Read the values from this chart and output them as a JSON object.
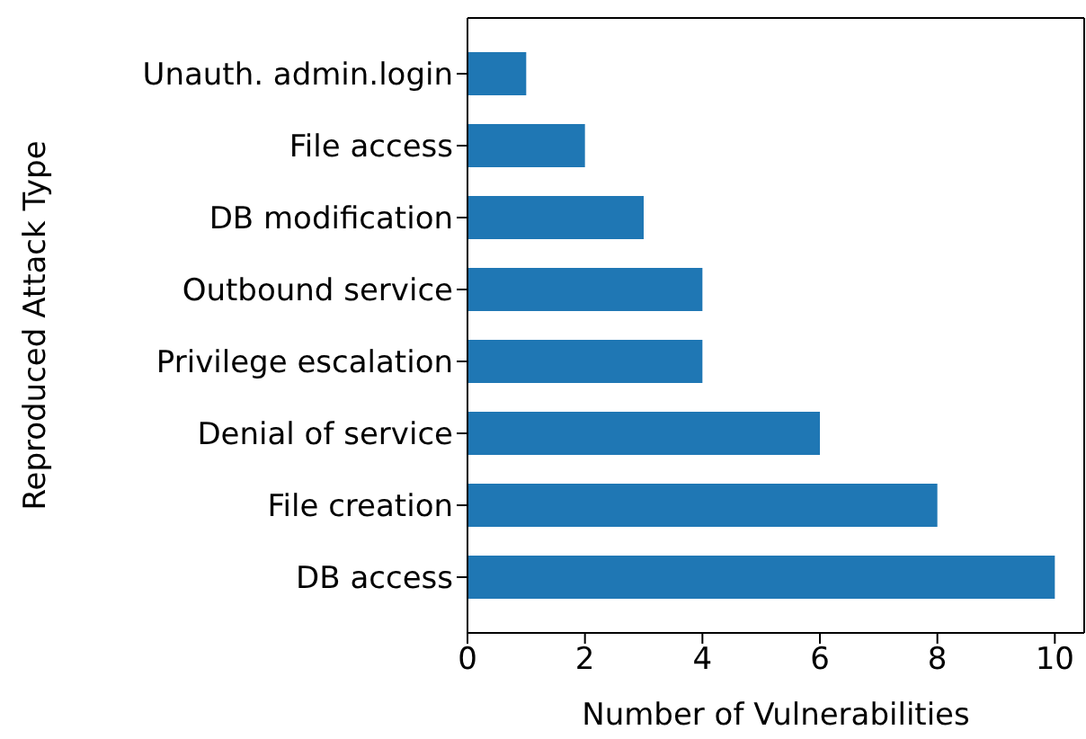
{
  "chart_data": {
    "type": "bar",
    "orientation": "horizontal",
    "xlabel": "Number of Vulnerabilities",
    "ylabel": "Reproduced Attack Type",
    "categories": [
      "Unauth. admin.login",
      "File access",
      "DB modification",
      "Outbound service",
      "Privilege escalation",
      "Denial of service",
      "File creation",
      "DB access"
    ],
    "values": [
      1,
      2,
      3,
      4,
      4,
      6,
      8,
      10
    ],
    "color": "#1f77b4",
    "xlim": [
      0,
      10.5
    ],
    "xticks": [
      0,
      2,
      4,
      6,
      8,
      10
    ],
    "grid": false,
    "legend": false
  }
}
